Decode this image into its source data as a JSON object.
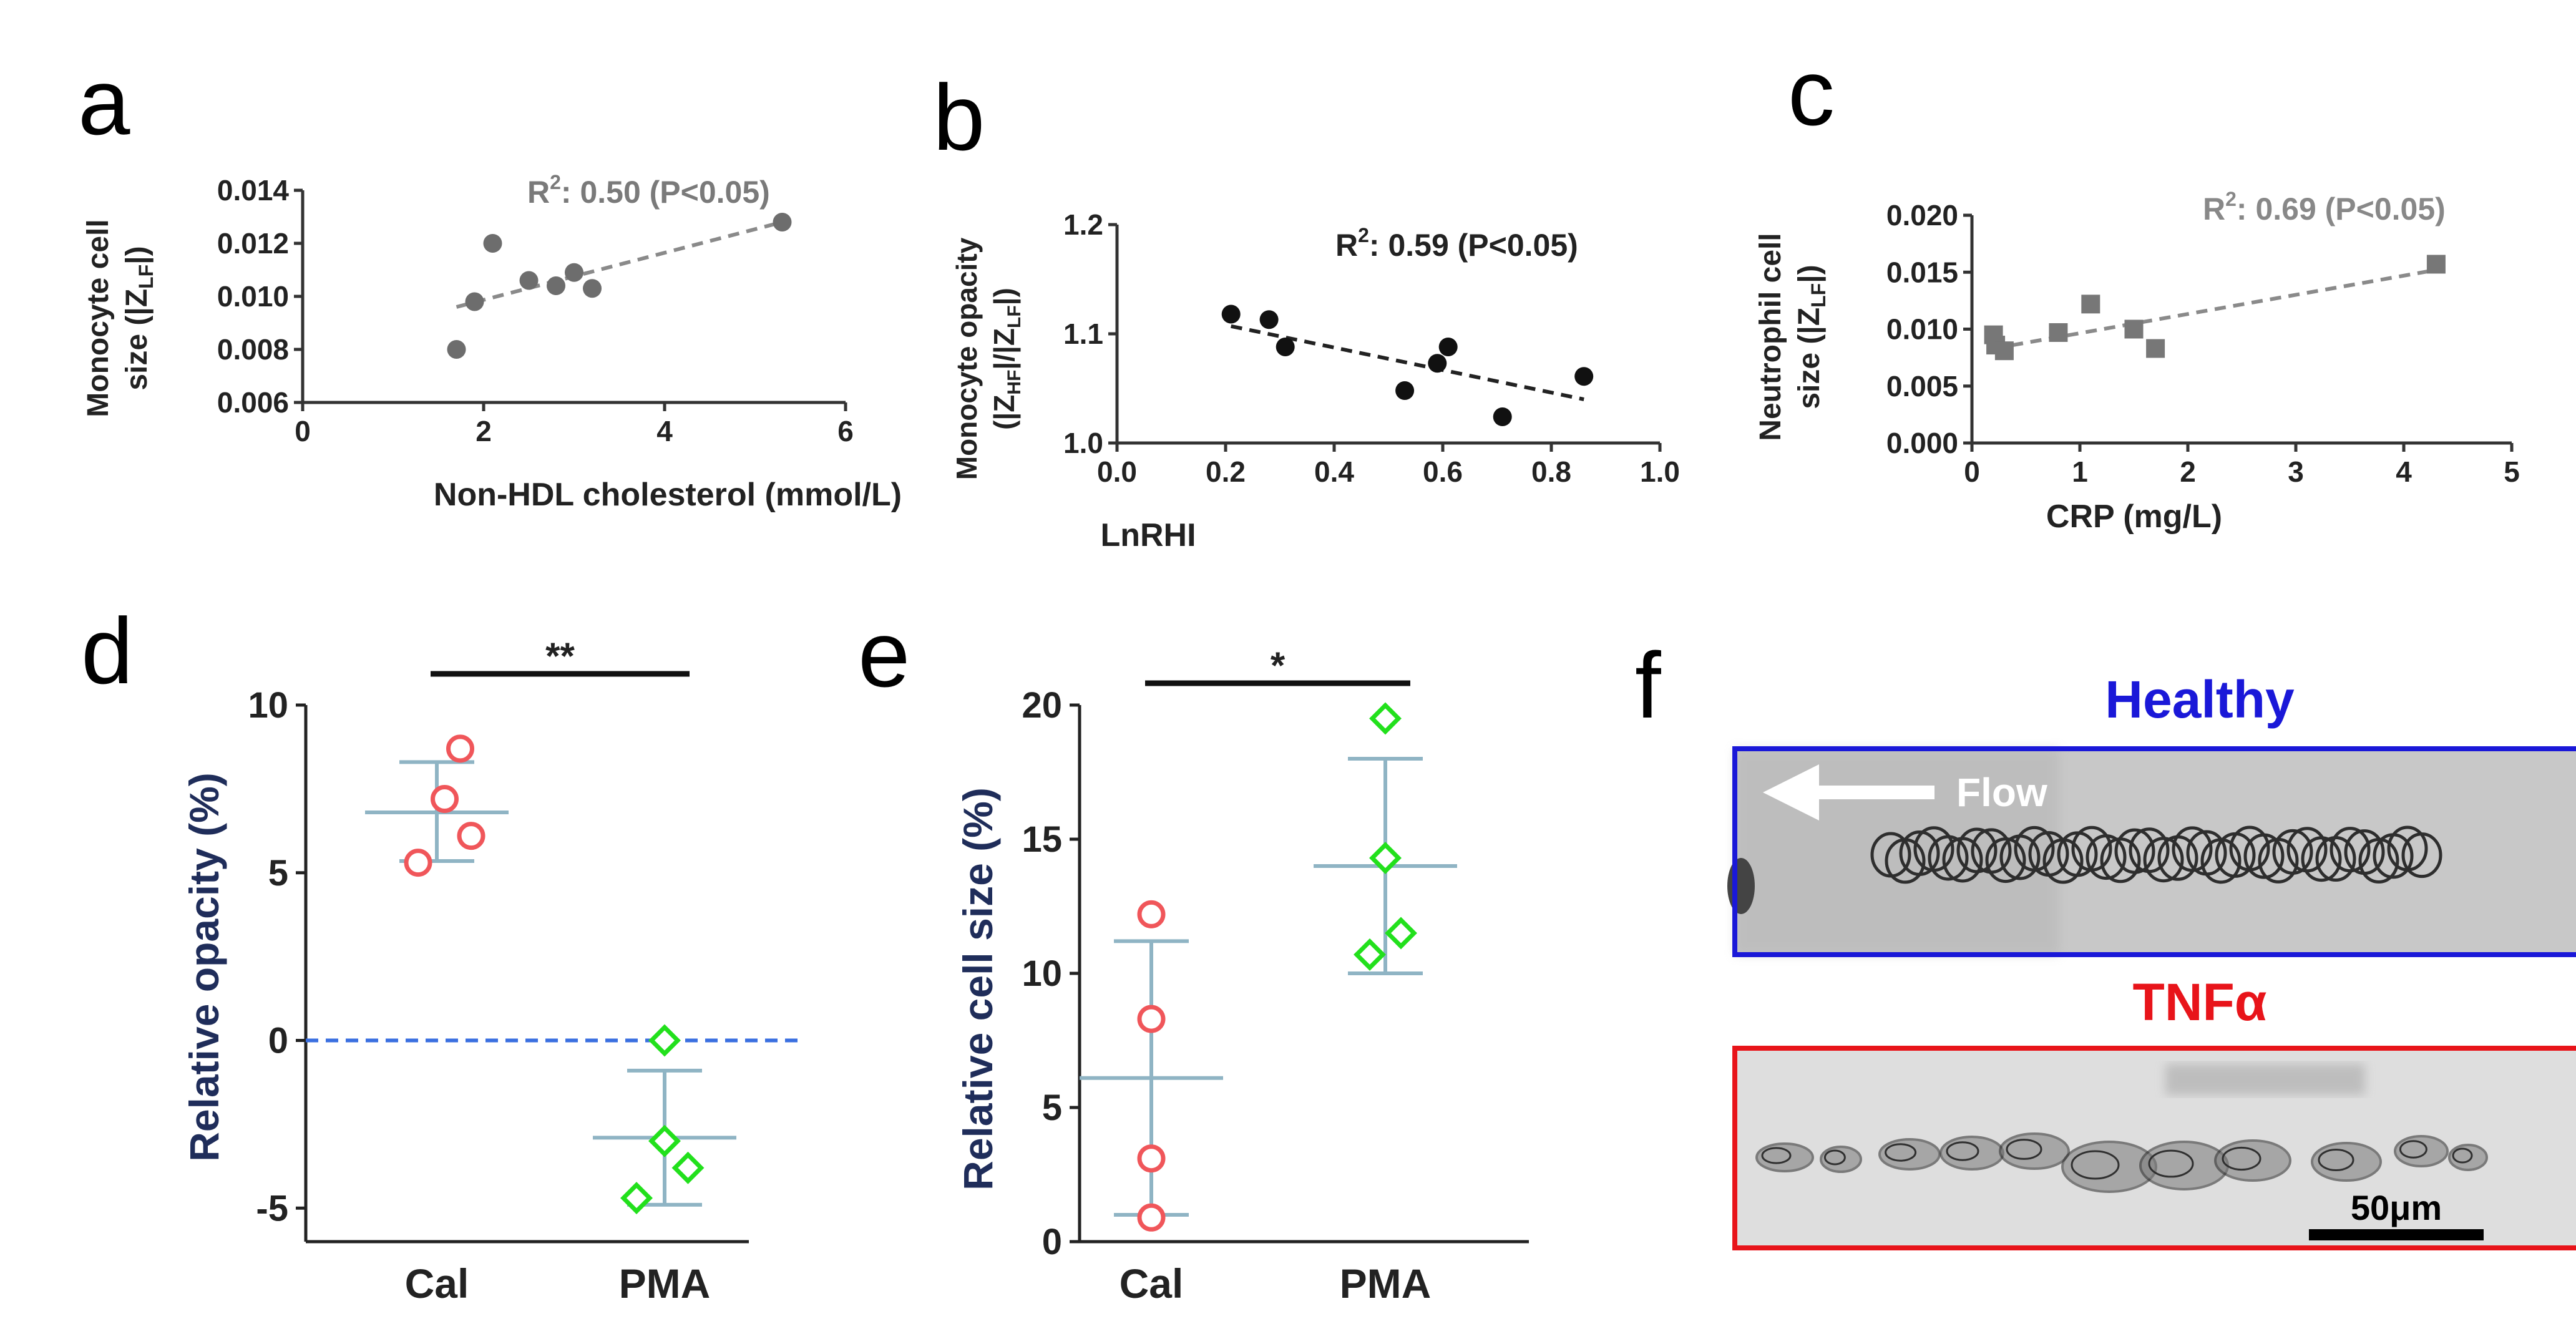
{
  "panel_letters": {
    "a": "a",
    "b": "b",
    "c": "c",
    "d": "d",
    "e": "e",
    "f": "f"
  },
  "chart_data": [
    {
      "panel": "a",
      "type": "scatter",
      "xlabel": "Non-HDL cholesterol (mmol/L)",
      "ylabel_line1": "Monocyte cell",
      "ylabel_line2": "size (|Z",
      "ylabel_sub": "LF",
      "ylabel_end": "|)",
      "annotation_main": "R",
      "annotation_sup": "2",
      "annotation_rest": ": 0.50 (P<0.05)",
      "xlim": [
        0,
        6
      ],
      "ylim": [
        0.006,
        0.014
      ],
      "xticks": [
        0,
        2,
        4,
        6
      ],
      "xtick_labels": [
        "0",
        "2",
        "4",
        "6"
      ],
      "yticks": [
        0.006,
        0.008,
        0.01,
        0.012,
        0.014
      ],
      "ytick_labels": [
        "0.006",
        "0.008",
        "0.010",
        "0.012",
        "0.014"
      ],
      "points": [
        {
          "x": 1.7,
          "y": 0.008
        },
        {
          "x": 1.9,
          "y": 0.0098
        },
        {
          "x": 2.1,
          "y": 0.012
        },
        {
          "x": 2.5,
          "y": 0.0106
        },
        {
          "x": 2.8,
          "y": 0.0104
        },
        {
          "x": 3.0,
          "y": 0.0109
        },
        {
          "x": 3.2,
          "y": 0.0103
        },
        {
          "x": 5.3,
          "y": 0.0128
        }
      ],
      "fit": [
        [
          1.7,
          0.0096
        ],
        [
          5.3,
          0.0128
        ]
      ],
      "marker": "circle",
      "color": "#6d6d6d",
      "annotation_color": "#7a7a7a"
    },
    {
      "panel": "b",
      "type": "scatter",
      "xlabel": "LnRHI",
      "ylabel_line1": "Monocyte opacity",
      "ylabel_line2": "(|Z",
      "ylabel_sub": "HF",
      "ylabel_mid": "|/|Z",
      "ylabel_sub2": "LF",
      "ylabel_end": "|)",
      "annotation_main": "R",
      "annotation_sup": "2",
      "annotation_rest": ": 0.59 (P<0.05)",
      "xlim": [
        0,
        1.0
      ],
      "ylim": [
        1.0,
        1.2
      ],
      "xticks": [
        0,
        0.2,
        0.4,
        0.6,
        0.8,
        1.0
      ],
      "xtick_labels": [
        "0.0",
        "0.2",
        "0.4",
        "0.6",
        "0.8",
        "1.0"
      ],
      "yticks": [
        1.0,
        1.1,
        1.2
      ],
      "ytick_labels": [
        "1.0",
        "1.1",
        "1.2"
      ],
      "points": [
        {
          "x": 0.21,
          "y": 1.118
        },
        {
          "x": 0.28,
          "y": 1.113
        },
        {
          "x": 0.31,
          "y": 1.088
        },
        {
          "x": 0.53,
          "y": 1.048
        },
        {
          "x": 0.59,
          "y": 1.073
        },
        {
          "x": 0.61,
          "y": 1.088
        },
        {
          "x": 0.71,
          "y": 1.024
        },
        {
          "x": 0.86,
          "y": 1.061
        }
      ],
      "fit": [
        [
          0.21,
          1.107
        ],
        [
          0.86,
          1.04
        ]
      ],
      "marker": "circle",
      "color": "#111111",
      "annotation_color": "#111111"
    },
    {
      "panel": "c",
      "type": "scatter",
      "xlabel": "CRP (mg/L)",
      "ylabel_line1": "Neutrophil cell",
      "ylabel_line2": "size (|Z",
      "ylabel_sub": "LF",
      "ylabel_end": "|)",
      "annotation_main": "R",
      "annotation_sup": "2",
      "annotation_rest": ": 0.69 (P<0.05)",
      "xlim": [
        0,
        5
      ],
      "ylim": [
        0,
        0.02
      ],
      "xticks": [
        0,
        1,
        2,
        3,
        4,
        5
      ],
      "xtick_labels": [
        "0",
        "1",
        "2",
        "3",
        "4",
        "5"
      ],
      "yticks": [
        0,
        0.005,
        0.01,
        0.015,
        0.02
      ],
      "ytick_labels": [
        "0.000",
        "0.005",
        "0.010",
        "0.015",
        "0.020"
      ],
      "points": [
        {
          "x": 0.2,
          "y": 0.0095
        },
        {
          "x": 0.22,
          "y": 0.0086
        },
        {
          "x": 0.3,
          "y": 0.0081
        },
        {
          "x": 0.8,
          "y": 0.0097
        },
        {
          "x": 1.1,
          "y": 0.0122
        },
        {
          "x": 1.5,
          "y": 0.01
        },
        {
          "x": 1.7,
          "y": 0.0083
        },
        {
          "x": 4.3,
          "y": 0.0157
        }
      ],
      "fit": [
        [
          0.2,
          0.0083
        ],
        [
          4.3,
          0.0152
        ]
      ],
      "marker": "square",
      "color": "#777777",
      "annotation_color": "#888888"
    },
    {
      "panel": "d",
      "type": "scatter",
      "ylabel": "Relative opacity (%)",
      "categories": [
        "Cal",
        "PMA"
      ],
      "ylim": [
        -6,
        10
      ],
      "yticks": [
        -5,
        0,
        5,
        10
      ],
      "ytick_labels": [
        "-5",
        "0",
        "5",
        "10"
      ],
      "zero_line": true,
      "significance": "**",
      "series": [
        {
          "name": "Cal",
          "marker": "circle",
          "color": "#f0565a",
          "points": [
            {
              "dx": 0.15,
              "y": 8.7
            },
            {
              "dx": 0.05,
              "y": 7.2
            },
            {
              "dx": 0.22,
              "y": 6.1
            },
            {
              "dx": -0.12,
              "y": 5.3
            }
          ],
          "mean": 6.8,
          "sd_low": 5.35,
          "sd_high": 8.3
        },
        {
          "name": "PMA",
          "marker": "diamond",
          "color": "#22e01c",
          "points": [
            {
              "dx": 0.0,
              "y": 0.0
            },
            {
              "dx": 0.0,
              "y": -3.0
            },
            {
              "dx": 0.15,
              "y": -3.8
            },
            {
              "dx": -0.18,
              "y": -4.7
            }
          ],
          "mean": -2.9,
          "sd_low": -4.9,
          "sd_high": -0.9
        }
      ]
    },
    {
      "panel": "e",
      "type": "scatter",
      "ylabel": "Relative cell size (%)",
      "categories": [
        "Cal",
        "PMA"
      ],
      "ylim": [
        0,
        20
      ],
      "yticks": [
        0,
        5,
        10,
        15,
        20
      ],
      "ytick_labels": [
        "0",
        "5",
        "10",
        "15",
        "20"
      ],
      "zero_line": false,
      "significance": "*",
      "series": [
        {
          "name": "Cal",
          "marker": "circle",
          "color": "#f0565a",
          "points": [
            {
              "dx": 0.0,
              "y": 12.2
            },
            {
              "dx": 0.0,
              "y": 8.3
            },
            {
              "dx": 0.0,
              "y": 3.1
            },
            {
              "dx": 0.0,
              "y": 0.9
            }
          ],
          "mean": 6.1,
          "sd_low": 1.0,
          "sd_high": 11.2
        },
        {
          "name": "PMA",
          "marker": "diamond",
          "color": "#22e01c",
          "points": [
            {
              "dx": 0.0,
              "y": 19.5
            },
            {
              "dx": 0.0,
              "y": 14.3
            },
            {
              "dx": 0.1,
              "y": 11.5
            },
            {
              "dx": -0.1,
              "y": 10.7
            }
          ],
          "mean": 14.0,
          "sd_low": 10.0,
          "sd_high": 18.0
        }
      ]
    }
  ],
  "panel_f": {
    "healthy_title": "Healthy",
    "healthy_color": "#1a18d8",
    "flow_label": "Flow",
    "tnf_title": "TNFα",
    "tnf_color": "#e8141a",
    "scale_label": "50μm"
  }
}
